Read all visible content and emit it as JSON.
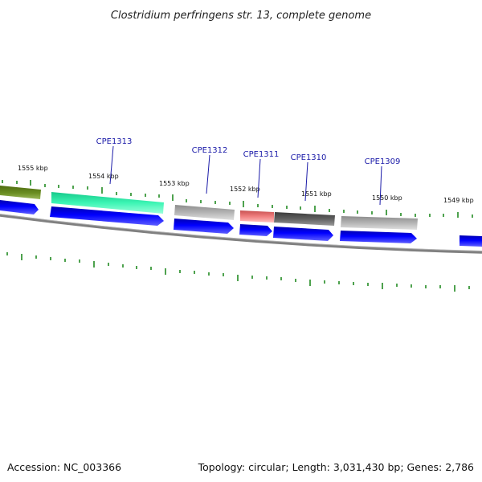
{
  "title": "Clostridium perfringens str. 13, complete genome",
  "accession": "Accession: NC_003366",
  "summary": "Topology: circular; Length: 3,031,430 bp; Genes: 2,786",
  "kbp_labels": [
    "1555 kbp",
    "1554 kbp",
    "1553 kbp",
    "1552 kbp",
    "1551 kbp",
    "1550 kbp",
    "1549 kbp"
  ],
  "gene_labels": [
    "CPE1313",
    "CPE1312",
    "CPE1311",
    "CPE1310",
    "CPE1309"
  ],
  "colors": {
    "cds": "#0000ff",
    "backbone": "#808080",
    "tick": "#228b22",
    "gene_label": "#1a1aa8",
    "olive": "#6b8e23",
    "aquamarine": "#3cf5b4",
    "grey": "#b4b4b4",
    "salmon": "#f08080",
    "dimgrey": "#606060"
  }
}
